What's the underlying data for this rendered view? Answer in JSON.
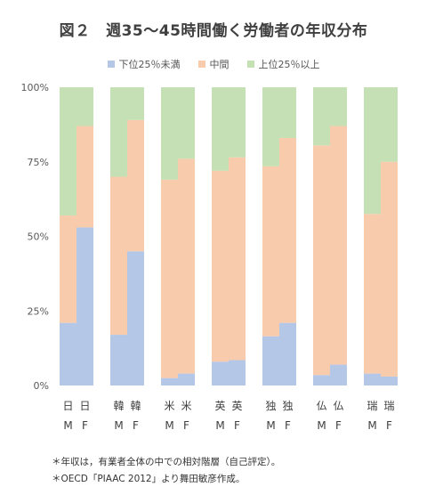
{
  "chart_data": {
    "type": "bar",
    "stacked": true,
    "title": "図２　週35～45時間働く労働者の年収分布",
    "categories": [
      "日 M",
      "日 F",
      "韓 M",
      "韓 F",
      "米 M",
      "米 F",
      "英 M",
      "英 F",
      "独 M",
      "独 F",
      "仏 M",
      "仏 F",
      "瑞 M",
      "瑞 F"
    ],
    "country_labels": [
      "日",
      "日",
      "韓",
      "韓",
      "米",
      "米",
      "英",
      "英",
      "独",
      "独",
      "仏",
      "仏",
      "瑞",
      "瑞"
    ],
    "sex_labels": [
      "M",
      "F",
      "M",
      "F",
      "M",
      "F",
      "M",
      "F",
      "M",
      "F",
      "M",
      "F",
      "M",
      "F"
    ],
    "series": [
      {
        "name": "下位25％未満",
        "color": "#b4c7e7",
        "values": [
          21,
          53,
          17,
          45,
          2.5,
          4,
          8,
          8.5,
          16.5,
          21,
          3.5,
          7,
          4,
          3
        ]
      },
      {
        "name": "中間",
        "color": "#f8cbad",
        "values": [
          36,
          34,
          53,
          44,
          66.5,
          72,
          64,
          68,
          57,
          62,
          77,
          80,
          53.5,
          72
        ]
      },
      {
        "name": "上位25％以上",
        "color": "#c5e0b4",
        "values": [
          43,
          13,
          30,
          11,
          31,
          24,
          28,
          23.5,
          26.5,
          17,
          19.5,
          13,
          42.5,
          25
        ]
      }
    ],
    "yticks": [
      "0%",
      "25%",
      "50%",
      "75%",
      "100%"
    ],
    "ylim": [
      0,
      100
    ],
    "legend_position": "top",
    "grid": false
  },
  "notes": [
    "＊年収は，有業者全体の中での相対階層（自己評定）。",
    "＊OECD「PIAAC 2012」より舞田敏彦作成。"
  ]
}
